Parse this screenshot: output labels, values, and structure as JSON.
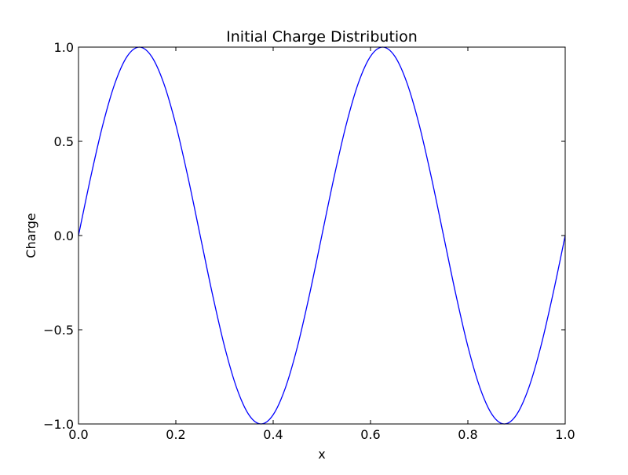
{
  "chart_data": {
    "type": "line",
    "title": "Initial Charge Distribution",
    "xlabel": "x",
    "ylabel": "Charge",
    "xlim": [
      0.0,
      1.0
    ],
    "ylim": [
      -1.0,
      1.0
    ],
    "grid": false,
    "legend": "none",
    "x_ticks": [
      {
        "value": 0.0,
        "label": "0.0"
      },
      {
        "value": 0.2,
        "label": "0.2"
      },
      {
        "value": 0.4,
        "label": "0.4"
      },
      {
        "value": 0.6,
        "label": "0.6"
      },
      {
        "value": 0.8,
        "label": "0.8"
      },
      {
        "value": 1.0,
        "label": "1.0"
      }
    ],
    "y_ticks": [
      {
        "value": -1.0,
        "label": "−1.0"
      },
      {
        "value": -0.5,
        "label": "−0.5"
      },
      {
        "value": 0.0,
        "label": "0.0"
      },
      {
        "value": 0.5,
        "label": "0.5"
      },
      {
        "value": 1.0,
        "label": "1.0"
      }
    ],
    "series": [
      {
        "color": "#0000ff",
        "x": [
          0.0,
          0.025,
          0.05,
          0.075,
          0.1,
          0.125,
          0.15,
          0.175,
          0.2,
          0.225,
          0.25,
          0.275,
          0.3,
          0.325,
          0.35,
          0.375,
          0.4,
          0.425,
          0.45,
          0.475,
          0.5,
          0.525,
          0.55,
          0.575,
          0.6,
          0.625,
          0.65,
          0.675,
          0.7,
          0.725,
          0.75,
          0.775,
          0.8,
          0.825,
          0.85,
          0.875,
          0.9,
          0.925,
          0.95,
          0.975,
          1.0
        ],
        "y": [
          0.0,
          0.309,
          0.588,
          0.809,
          0.951,
          1.0,
          0.951,
          0.809,
          0.588,
          0.309,
          0.0,
          -0.309,
          -0.588,
          -0.809,
          -0.951,
          -1.0,
          -0.951,
          -0.809,
          -0.588,
          -0.309,
          0.0,
          0.309,
          0.588,
          0.809,
          0.951,
          1.0,
          0.951,
          0.809,
          0.588,
          0.309,
          0.0,
          -0.309,
          -0.588,
          -0.809,
          -0.951,
          -1.0,
          -0.951,
          -0.809,
          -0.588,
          -0.309,
          0.0
        ]
      }
    ]
  }
}
